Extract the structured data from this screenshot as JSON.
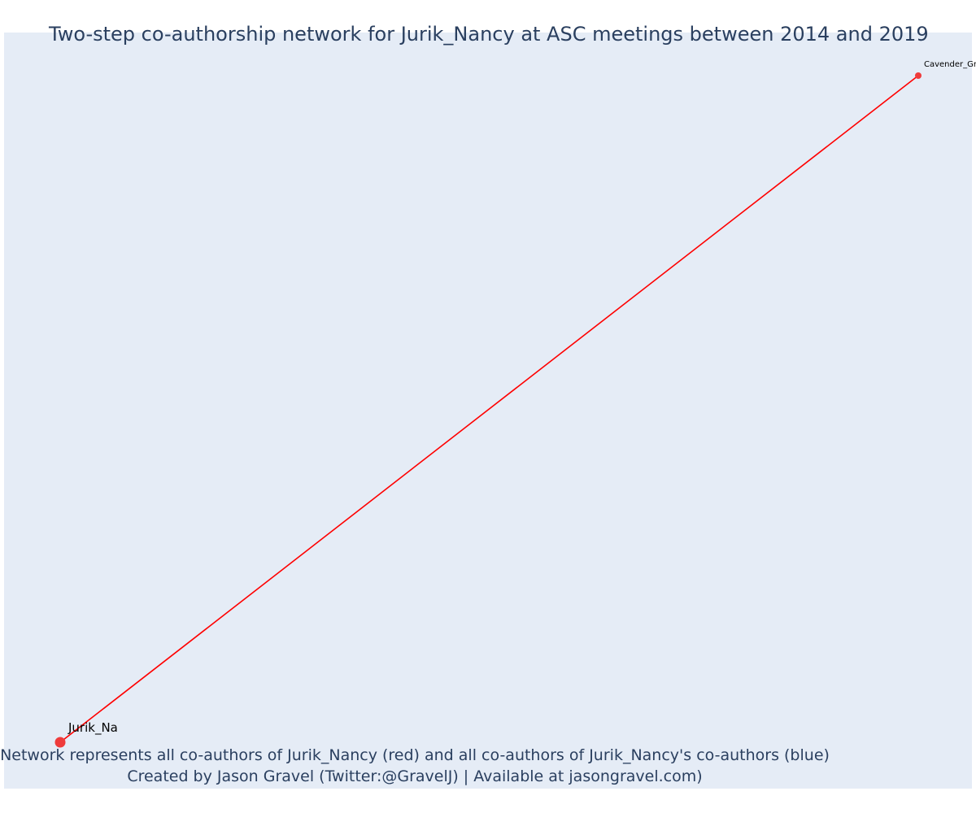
{
  "title": "Two-step co-authorship network for Jurik_Nancy at ASC meetings between 2014 and 2019",
  "caption": {
    "line1": "Network represents all co-authors of Jurik_Nancy (red) and all co-authors of Jurik_Nancy's co-authors (blue)",
    "line2": "Created by Jason Gravel (Twitter:@GravelJ) | Available at jasongravel.com)"
  },
  "colors": {
    "background": "#e5ecf6",
    "text": "#2a3f5f",
    "edge": "#ff0000",
    "node": "#ef3b3b"
  },
  "network": {
    "nodes": [
      {
        "id": "jurik",
        "label": "Jurik_Na",
        "role": "focal"
      },
      {
        "id": "cavender",
        "label": "Cavender_Gr",
        "role": "co-author"
      }
    ],
    "edges": [
      {
        "from": "jurik",
        "to": "cavender"
      }
    ]
  }
}
